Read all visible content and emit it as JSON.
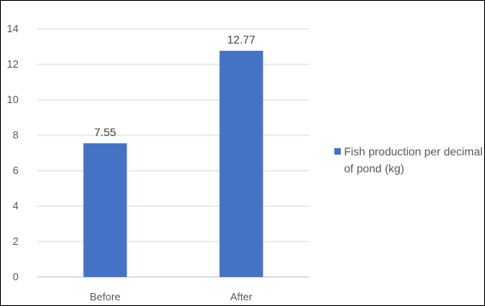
{
  "chart_data": {
    "type": "bar",
    "categories": [
      "Before",
      "After"
    ],
    "series": [
      {
        "name": "Fish production per decimal of pond (kg)",
        "values": [
          7.55,
          12.77
        ],
        "color": "#4472C4"
      }
    ],
    "data_labels": [
      "7.55",
      "12.77"
    ],
    "ylim": [
      0,
      14
    ],
    "yticks": [
      0,
      2,
      4,
      6,
      8,
      10,
      12,
      14
    ],
    "grid": true,
    "legend_position": "right",
    "legend_lines": [
      "Fish production per decimal",
      "of pond (kg)"
    ],
    "title": "",
    "xlabel": "",
    "ylabel": ""
  }
}
